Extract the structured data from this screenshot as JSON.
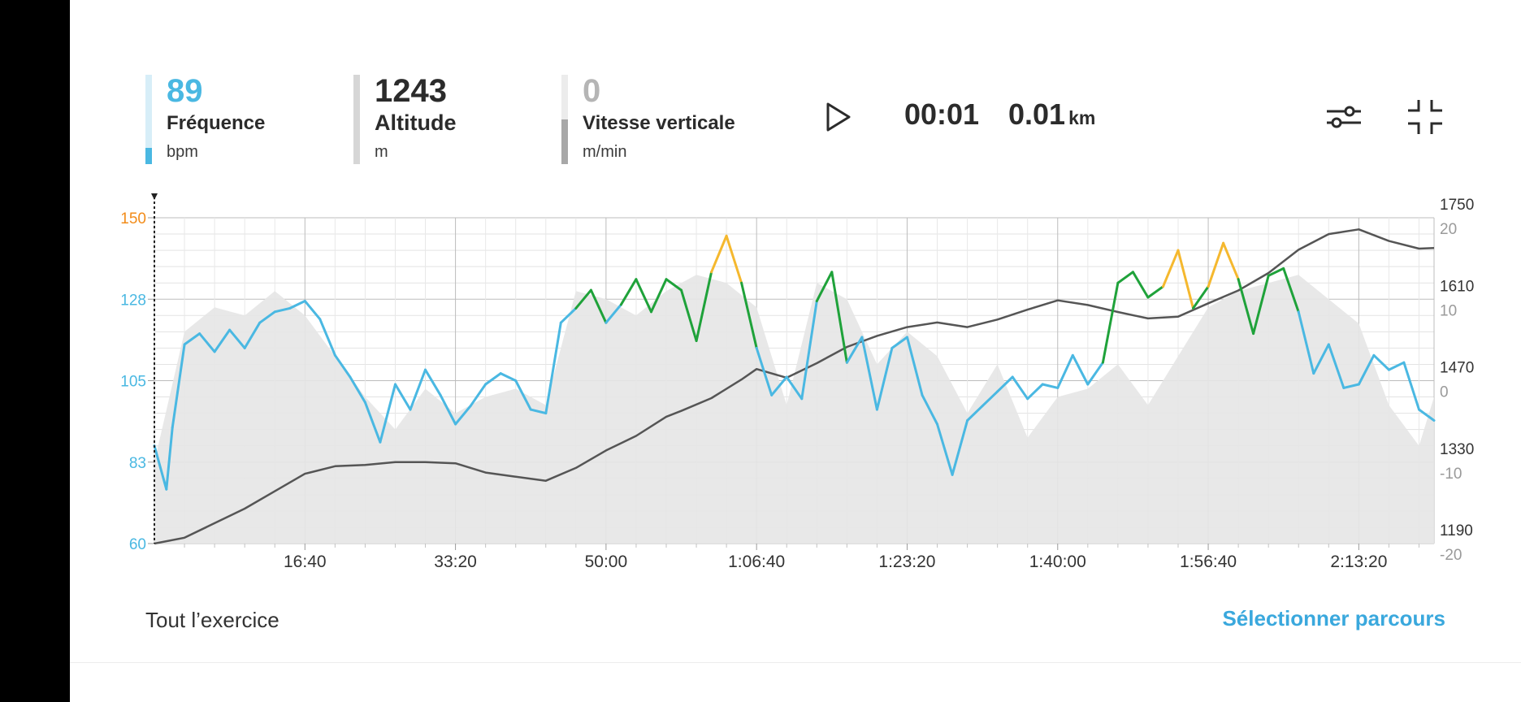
{
  "metrics": {
    "heart_rate": {
      "value": "89",
      "label": "Fréquence",
      "unit": "bpm",
      "color": "#4ab8e2",
      "level": 0.18
    },
    "altitude": {
      "value": "1243",
      "label": "Altitude",
      "unit": "m",
      "color": "#2b2b2b",
      "level": 1.0
    },
    "vertical_speed": {
      "value": "0",
      "label": "Vitesse verticale",
      "unit": "m/min",
      "color": "#a8a8a8",
      "level": 0.5
    }
  },
  "playback": {
    "time": "00:01",
    "distance": "0.01",
    "distance_unit": "km",
    "play_icon": "play-icon"
  },
  "toolbar": {
    "settings_icon": "sliders-icon",
    "collapse_icon": "collapse-icon"
  },
  "footer": {
    "range_label": "Tout l’exercice",
    "select_route": "Sélectionner parcours"
  },
  "chart_data": {
    "type": "line",
    "x_ticks": [
      "16:40",
      "33:20",
      "50:00",
      "1:06:40",
      "1:23:20",
      "1:40:00",
      "1:56:40",
      "2:13:20"
    ],
    "x_range_seconds": [
      0,
      8500
    ],
    "y_left": {
      "ticks": [
        "60",
        "83",
        "105",
        "128",
        "150"
      ],
      "range": [
        60,
        150
      ],
      "unit": "bpm",
      "top_tick_color": "#f28c1a",
      "tick_color": "#4ab8e2"
    },
    "y_right_altitude": {
      "ticks": [
        "1190",
        "1330",
        "1470",
        "1610",
        "1750"
      ],
      "range": [
        1190,
        1750
      ],
      "unit": "m"
    },
    "y_right_vertical_speed": {
      "ticks": [
        "-20",
        "-10",
        "0",
        "10",
        "20"
      ],
      "range": [
        -20,
        20
      ],
      "unit": "m/min"
    },
    "grid": true,
    "zone_colors": {
      "low": "#4ab8e2",
      "mid": "#1fa23a",
      "high": "#f5b82e"
    },
    "zone_thresholds": [
      130,
      140
    ],
    "series": [
      {
        "key": "heart_rate",
        "color": "#4ab8e2",
        "axis": "y_left",
        "x": [
          0,
          80,
          120,
          200,
          300,
          400,
          500,
          600,
          700,
          800,
          900,
          1000,
          1100,
          1200,
          1300,
          1400,
          1500,
          1600,
          1700,
          1800,
          1900,
          2000,
          2100,
          2200,
          2300,
          2400,
          2500,
          2600,
          2700,
          2800,
          2900,
          3000,
          3100,
          3200,
          3300,
          3400,
          3500,
          3600,
          3700,
          3800,
          3900,
          4000,
          4100,
          4200,
          4300,
          4400,
          4500,
          4600,
          4700,
          4800,
          4900,
          5000,
          5100,
          5200,
          5300,
          5400,
          5500,
          5600,
          5700,
          5800,
          5900,
          6000,
          6100,
          6200,
          6300,
          6400,
          6500,
          6600,
          6700,
          6800,
          6900,
          7000,
          7100,
          7200,
          7300,
          7400,
          7500,
          7600,
          7700,
          7800,
          7900,
          8000,
          8100,
          8200,
          8300,
          8400,
          8500
        ],
        "values": [
          87,
          75,
          92,
          115,
          118,
          113,
          119,
          114,
          121,
          124,
          125,
          127,
          122,
          112,
          106,
          99,
          88,
          104,
          97,
          108,
          101,
          93,
          98,
          104,
          107,
          105,
          97,
          96,
          121,
          125,
          130,
          121,
          126,
          133,
          124,
          133,
          130,
          116,
          135,
          145,
          132,
          114,
          101,
          106,
          100,
          127,
          135,
          110,
          117,
          97,
          114,
          117,
          101,
          93,
          79,
          94,
          98,
          102,
          106,
          100,
          104,
          103,
          112,
          104,
          110,
          132,
          135,
          128,
          131,
          141,
          125,
          131,
          143,
          133,
          118,
          134,
          136,
          124,
          107,
          115,
          103,
          104,
          112,
          108,
          110,
          97,
          94
        ]
      },
      {
        "key": "altitude",
        "color": "#555555",
        "axis": "y_right_altitude",
        "x": [
          0,
          200,
          400,
          600,
          800,
          1000,
          1200,
          1400,
          1600,
          1800,
          2000,
          2200,
          2400,
          2600,
          2800,
          3000,
          3200,
          3400,
          3500,
          3700,
          3900,
          4000,
          4200,
          4400,
          4600,
          4800,
          5000,
          5200,
          5400,
          5600,
          5800,
          6000,
          6200,
          6400,
          6600,
          6800,
          7000,
          7200,
          7400,
          7600,
          7800,
          8000,
          8200,
          8400,
          8500
        ],
        "values": [
          1190,
          1200,
          1225,
          1250,
          1280,
          1310,
          1323,
          1325,
          1330,
          1330,
          1328,
          1312,
          1305,
          1298,
          1320,
          1350,
          1375,
          1408,
          1418,
          1440,
          1472,
          1490,
          1475,
          1500,
          1528,
          1547,
          1562,
          1570,
          1562,
          1575,
          1592,
          1608,
          1600,
          1588,
          1577,
          1580,
          1603,
          1625,
          1655,
          1695,
          1722,
          1730,
          1710,
          1697,
          1698
        ]
      },
      {
        "key": "vertical_speed",
        "color": "#e6e6e6",
        "axis": "y_right_vertical_speed",
        "x": [
          0,
          200,
          400,
          600,
          800,
          1000,
          1200,
          1400,
          1600,
          1800,
          2000,
          2200,
          2400,
          2600,
          2800,
          3000,
          3200,
          3400,
          3600,
          3800,
          4000,
          4200,
          4400,
          4600,
          4800,
          5000,
          5200,
          5400,
          5600,
          5800,
          6000,
          6200,
          6400,
          6600,
          6800,
          7000,
          7200,
          7400,
          7600,
          7800,
          8000,
          8200,
          8400,
          8500
        ],
        "values": [
          -10,
          6,
          9,
          8,
          11,
          8,
          3,
          -2,
          -6,
          -1,
          -4,
          -2,
          -1,
          -3,
          11,
          10,
          8,
          11,
          13,
          12,
          9,
          -3,
          12,
          10,
          2,
          6,
          3,
          -4,
          2,
          -7,
          -2,
          -1,
          2,
          -3,
          3,
          9,
          11,
          12,
          13,
          10,
          7,
          -3,
          -8,
          -2
        ]
      }
    ]
  }
}
